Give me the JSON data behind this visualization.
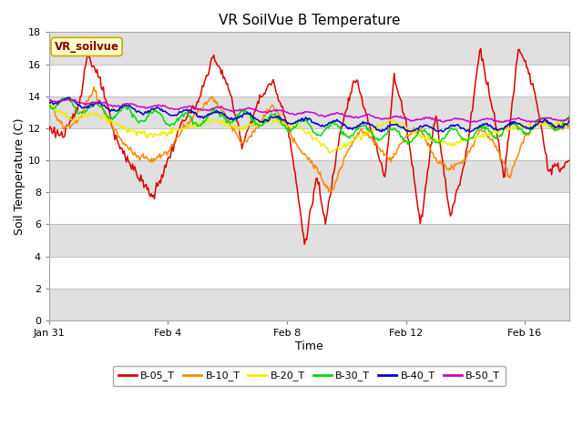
{
  "title": "VR SoilVue B Temperature",
  "xlabel": "Time",
  "ylabel": "Soil Temperature (C)",
  "ylim": [
    0,
    18
  ],
  "yticks": [
    0,
    2,
    4,
    6,
    8,
    10,
    12,
    14,
    16,
    18
  ],
  "legend_label": "VR_soilvue",
  "series_labels": [
    "B-05_T",
    "B-10_T",
    "B-20_T",
    "B-30_T",
    "B-40_T",
    "B-50_T"
  ],
  "series_colors": [
    "#dd0000",
    "#ff8800",
    "#eeee00",
    "#00dd00",
    "#0000cc",
    "#cc00cc"
  ],
  "background_color": "#ffffff",
  "gray_band_color": "#e0e0e0",
  "white_band_color": "#ffffff",
  "title_fontsize": 11,
  "axis_fontsize": 9,
  "tick_fontsize": 8,
  "xtick_labels": [
    "Jan 31",
    "Feb 4",
    "Feb 8",
    "Feb 12",
    "Feb 16"
  ],
  "xtick_positions": [
    0,
    4,
    8,
    12,
    16
  ],
  "xlim": [
    0,
    17.5
  ],
  "num_points": 500,
  "annotation_facecolor": "#ffffcc",
  "annotation_edgecolor": "#ccaa00",
  "annotation_textcolor": "#880000"
}
